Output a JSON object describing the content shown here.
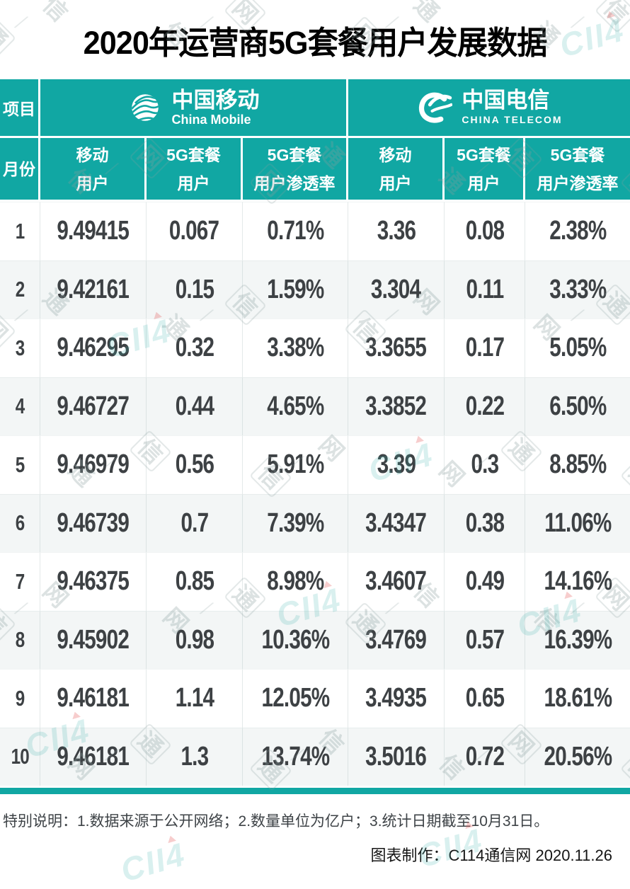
{
  "title": "2020年运营商5G套餐用户发展数据",
  "colors": {
    "accent": "#11a7a3",
    "row_alt": "#f3f6f6",
    "text_dark": "#3d4144"
  },
  "header": {
    "item_label": "项目",
    "month_label": "月份",
    "operators": [
      {
        "name_cn": "中国移动",
        "name_en": "China Mobile"
      },
      {
        "name_cn": "中国电信",
        "name_en": "CHINA TELECOM"
      }
    ],
    "columns": [
      {
        "line1": "移动",
        "line2": "用户"
      },
      {
        "line1": "5G套餐",
        "line2": "用户"
      },
      {
        "line1": "5G套餐",
        "line2": "用户渗透率"
      },
      {
        "line1": "移动",
        "line2": "用户"
      },
      {
        "line1": "5G套餐",
        "line2": "用户"
      },
      {
        "line1": "5G套餐",
        "line2": "用户渗透率"
      }
    ]
  },
  "chart_data": {
    "type": "table",
    "title": "2020年运营商5G套餐用户发展数据",
    "groups": [
      "中国移动",
      "中国电信"
    ],
    "columns": [
      "月份",
      "移动用户",
      "5G套餐用户",
      "5G套餐用户渗透率",
      "移动用户",
      "5G套餐用户",
      "5G套餐用户渗透率"
    ],
    "unit": "亿户",
    "rows": [
      {
        "month": "1",
        "values": [
          "9.49415",
          "0.067",
          "0.71%",
          "3.36",
          "0.08",
          "2.38%"
        ]
      },
      {
        "month": "2",
        "values": [
          "9.42161",
          "0.15",
          "1.59%",
          "3.304",
          "0.11",
          "3.33%"
        ]
      },
      {
        "month": "3",
        "values": [
          "9.46295",
          "0.32",
          "3.38%",
          "3.3655",
          "0.17",
          "5.05%"
        ]
      },
      {
        "month": "4",
        "values": [
          "9.46727",
          "0.44",
          "4.65%",
          "3.3852",
          "0.22",
          "6.50%"
        ]
      },
      {
        "month": "5",
        "values": [
          "9.46979",
          "0.56",
          "5.91%",
          "3.39",
          "0.3",
          "8.85%"
        ]
      },
      {
        "month": "6",
        "values": [
          "9.46739",
          "0.7",
          "7.39%",
          "3.4347",
          "0.38",
          "11.06%"
        ]
      },
      {
        "month": "7",
        "values": [
          "9.46375",
          "0.85",
          "8.98%",
          "3.4607",
          "0.49",
          "14.16%"
        ]
      },
      {
        "month": "8",
        "values": [
          "9.45902",
          "0.98",
          "10.36%",
          "3.4769",
          "0.57",
          "16.39%"
        ]
      },
      {
        "month": "9",
        "values": [
          "9.46181",
          "1.14",
          "12.05%",
          "3.4935",
          "0.65",
          "18.61%"
        ]
      },
      {
        "month": "10",
        "values": [
          "9.46181",
          "1.3",
          "13.74%",
          "3.5016",
          "0.72",
          "20.56%"
        ]
      }
    ]
  },
  "footer": {
    "note": "特别说明：1.数据来源于公开网络；2.数量单位为亿户；3.统计日期截至10月31日。",
    "credit": "图表制作：C114通信网  2020.11.26"
  },
  "watermark": {
    "chars": [
      "通",
      "信",
      "网"
    ],
    "separator": "∕",
    "brand": "CII4"
  }
}
